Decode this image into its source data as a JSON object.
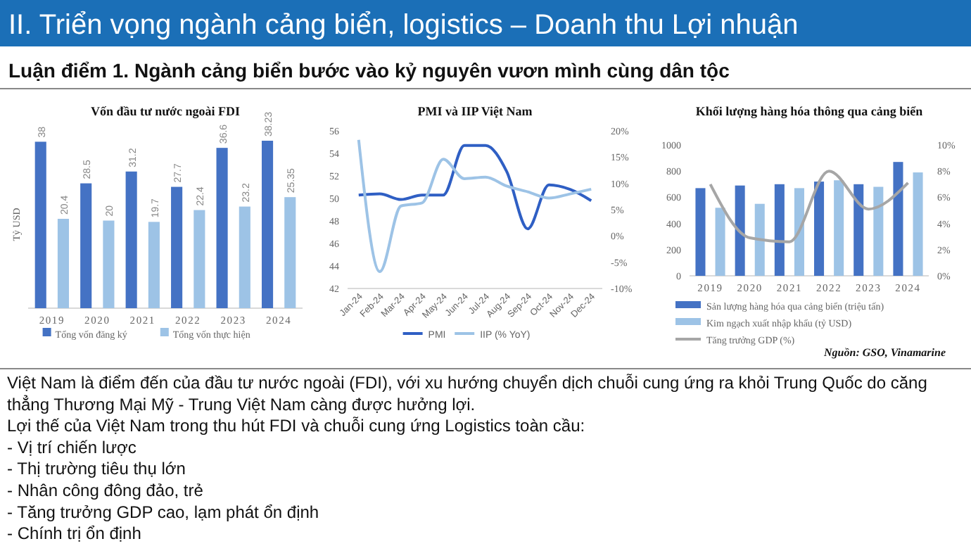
{
  "chart_data": [
    {
      "type": "other",
      "title": "II. Triển vọng ngành cảng biển, logistics – Doanh thu Lợi nhuận",
      "subtitle": "Luận điểm 1. Ngành cảng biển bước vào kỷ nguyên vươn mình cùng dân tộc"
    },
    {
      "type": "bar",
      "title": "Vốn đầu tư nước ngoài FDI",
      "ylabel": "Tỷ USD",
      "categories": [
        "2019",
        "2020",
        "2021",
        "2022",
        "2023",
        "2024"
      ],
      "series": [
        {
          "name": "Tổng vốn đăng ký",
          "color": "#4472c4",
          "values": [
            38,
            28.5,
            31.2,
            27.7,
            36.6,
            38.23
          ]
        },
        {
          "name": "Tổng vốn thực hiện",
          "color": "#9dc3e6",
          "values": [
            20.4,
            20,
            19.7,
            22.4,
            23.2,
            25.35
          ]
        }
      ],
      "data_labels": true,
      "legend": "bottom"
    },
    {
      "type": "line",
      "title": "PMI và IIP Việt Nam",
      "categories": [
        "Jan-24",
        "Feb-24",
        "Mar-24",
        "Apr-24",
        "May-24",
        "Jun-24",
        "Jul-24",
        "Aug-24",
        "Sep-24",
        "Oct-24",
        "Nov-24",
        "Dec-24"
      ],
      "series": [
        {
          "name": "PMI",
          "color": "#2f5fc4",
          "values": [
            50.3,
            50.4,
            49.9,
            50.3,
            50.3,
            54.7,
            54.7,
            52.4,
            47.3,
            51.2,
            50.8,
            49.8
          ]
        },
        {
          "name": "IIP (% YoY)",
          "color": "#9dc3e6",
          "axis": "y2",
          "values": [
            18.3,
            -6.8,
            5.7,
            6.3,
            14.6,
            10.9,
            11.2,
            9.5,
            8.4,
            7.2,
            8.0,
            8.9
          ]
        }
      ],
      "ylim": [
        42,
        56
      ],
      "yticks": [
        42,
        44,
        46,
        48,
        50,
        52,
        54,
        56
      ],
      "y2lim": [
        -10,
        20
      ],
      "y2ticks": [
        {
          "value": -10,
          "label": "-10%"
        },
        {
          "value": -5,
          "label": "-5%"
        },
        {
          "value": 0,
          "label": "0%"
        },
        {
          "value": 5,
          "label": "5%"
        },
        {
          "value": 10,
          "label": "10%"
        },
        {
          "value": 15,
          "label": "15%"
        },
        {
          "value": 20,
          "label": "20%"
        }
      ],
      "legend": "bottom"
    },
    {
      "type": "bar",
      "title": "Khối lượng hàng hóa thông qua cảng biển",
      "categories": [
        "2019",
        "2020",
        "2021",
        "2022",
        "2023",
        "2024"
      ],
      "series": [
        {
          "name": "Sản lượng hàng hóa qua cảng biển (triệu tấn)",
          "color": "#4472c4",
          "values": [
            670,
            690,
            700,
            720,
            700,
            870
          ]
        },
        {
          "name": "Kim ngạch xuất nhập khẩu (tỷ USD)",
          "color": "#9dc3e6",
          "values": [
            520,
            550,
            670,
            730,
            680,
            790
          ]
        },
        {
          "name": "Tăng trưởng GDP (%)",
          "color": "#a6a6a6",
          "type": "line",
          "axis": "y2",
          "values": [
            7.0,
            2.9,
            2.6,
            8.0,
            5.1,
            7.1
          ]
        }
      ],
      "ylim": [
        0,
        1000
      ],
      "yticks": [
        0,
        200,
        400,
        600,
        800,
        1000
      ],
      "y2lim": [
        0,
        10
      ],
      "y2ticks": [
        {
          "value": 0,
          "label": "0%"
        },
        {
          "value": 2,
          "label": "2%"
        },
        {
          "value": 4,
          "label": "4%"
        },
        {
          "value": 6,
          "label": "6%"
        },
        {
          "value": 8,
          "label": "8%"
        },
        {
          "value": 10,
          "label": "10%"
        }
      ],
      "legend": "bottom",
      "annotations": [
        "Nguồn: GSO, Vinamarine"
      ]
    },
    {
      "type": "other",
      "annotations": [
        "Việt Nam là điểm đến của đầu tư nước ngoài (FDI), với xu hướng chuyển dịch chuỗi cung ứng ra khỏi Trung Quốc do căng",
        "thẳng Thương Mại Mỹ - Trung Việt Nam càng được hưởng lợi.",
        "Lợi thế của Việt Nam trong thu hút FDI và chuỗi cung ứng Logistics toàn cầu:",
        "-    Vị trí chiến lược",
        "-    Thị trường tiêu thụ lớn",
        "-    Nhân công đông đảo, trẻ",
        "-    Tăng trưởng GDP cao, lạm phát ổn định",
        "-    Chính trị ổn định"
      ]
    }
  ]
}
